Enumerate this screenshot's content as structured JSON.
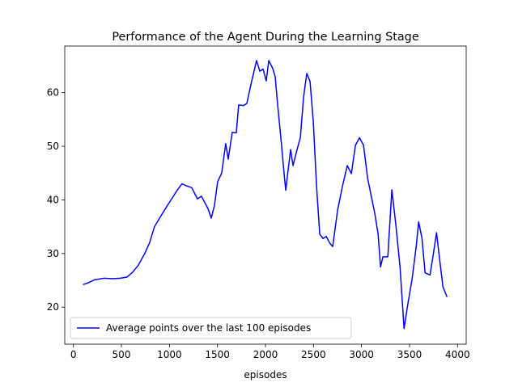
{
  "chart_data": {
    "type": "line",
    "title": "Performance of the Agent During the Learning Stage",
    "xlabel": "episodes",
    "x": [
      100,
      150,
      220,
      320,
      405,
      490,
      557,
      616,
      675,
      743,
      793,
      844,
      911,
      980,
      1038,
      1080,
      1131,
      1181,
      1232,
      1291,
      1333,
      1401,
      1435,
      1468,
      1502,
      1544,
      1586,
      1612,
      1654,
      1696,
      1721,
      1772,
      1806,
      1848,
      1907,
      1941,
      1975,
      2008,
      2034,
      2076,
      2101,
      2127,
      2160,
      2194,
      2211,
      2236,
      2262,
      2287,
      2329,
      2363,
      2397,
      2430,
      2464,
      2498,
      2532,
      2565,
      2599,
      2633,
      2667,
      2700,
      2751,
      2802,
      2852,
      2894,
      2937,
      2979,
      3021,
      3063,
      3105,
      3139,
      3173,
      3198,
      3223,
      3274,
      3316,
      3359,
      3401,
      3443,
      3477,
      3527,
      3570,
      3595,
      3629,
      3662,
      3713,
      3747,
      3781,
      3814,
      3848,
      3890
    ],
    "series": [
      {
        "name": "Average points over the last 100 episodes",
        "color": "#0000ff",
        "values": [
          24.2,
          24.5,
          25.1,
          25.4,
          25.3,
          25.4,
          25.6,
          26.5,
          27.8,
          30,
          32,
          35,
          37,
          39,
          40.6,
          41.8,
          43,
          42.6,
          42.3,
          40.2,
          40.7,
          38.4,
          36.6,
          38.9,
          43.4,
          45,
          50.5,
          47.6,
          52.6,
          52.5,
          57.7,
          57.6,
          58,
          61.5,
          66,
          64,
          64.4,
          62.2,
          66,
          64.5,
          63,
          57.7,
          51.6,
          44.9,
          41.8,
          45.6,
          49.4,
          46.4,
          49.4,
          51.6,
          59.2,
          63.6,
          62.1,
          54.6,
          42.5,
          33.6,
          32.8,
          33.2,
          32,
          31.3,
          38.1,
          42.6,
          46.4,
          44.9,
          50.2,
          51.6,
          50.2,
          44.1,
          40.4,
          37.4,
          33.6,
          27.5,
          29.4,
          29.4,
          41.9,
          35.1,
          27.5,
          16,
          20,
          25.3,
          31.4,
          35.9,
          32.9,
          26.4,
          26,
          29.8,
          33.9,
          28.8,
          23.8,
          21.9
        ]
      }
    ],
    "xlim": [
      -90,
      4090
    ],
    "ylim": [
      13.1,
      68.7
    ],
    "xticks": [
      0,
      500,
      1000,
      1500,
      2000,
      2500,
      3000,
      3500,
      4000
    ],
    "yticks": [
      20,
      30,
      40,
      50,
      60
    ],
    "legend": "lower left"
  }
}
